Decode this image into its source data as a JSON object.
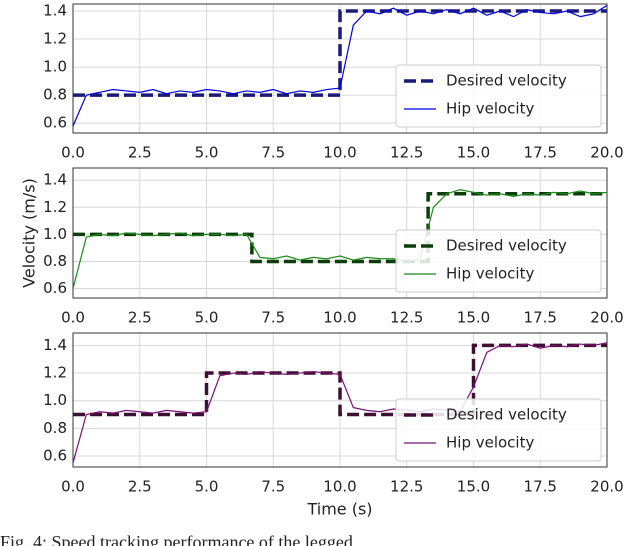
{
  "chart_data": [
    {
      "type": "line",
      "xlim": [
        0,
        20
      ],
      "ylim": [
        0.53,
        1.45
      ],
      "xticks": [
        {
          "value": 0,
          "label": "0.0"
        },
        2.5,
        {
          "value": 5,
          "label": "5.0"
        },
        7.5,
        {
          "value": 10,
          "label": "10.0"
        },
        12.5,
        {
          "value": 15,
          "label": "15.0"
        },
        17.5,
        {
          "value": 20,
          "label": "20.0"
        }
      ],
      "yticks": [
        0.6,
        0.8,
        {
          "value": 1,
          "label": "1.0"
        },
        1.2,
        1.4
      ],
      "grid": true,
      "legend": "lower right",
      "series": [
        {
          "name": "Desired velocity",
          "color": "#1a1a7a",
          "dashed": true,
          "x": [
            0,
            10,
            10,
            20
          ],
          "values": [
            0.8,
            0.8,
            1.4,
            1.4
          ]
        },
        {
          "name": "Hip velocity",
          "color": "#0000dd",
          "x": [
            0,
            0.5,
            1,
            1.5,
            2,
            2.5,
            3,
            3.5,
            4,
            4.5,
            5,
            5.5,
            6,
            6.5,
            7,
            7.5,
            8,
            8.5,
            9,
            9.5,
            10,
            10.5,
            11,
            11.5,
            12,
            12.5,
            13,
            13.5,
            14,
            14.5,
            15,
            15.5,
            16,
            16.5,
            17,
            17.5,
            18,
            18.5,
            19,
            19.5,
            20
          ],
          "values": [
            0.58,
            0.8,
            0.82,
            0.84,
            0.83,
            0.82,
            0.84,
            0.81,
            0.83,
            0.82,
            0.84,
            0.83,
            0.81,
            0.83,
            0.82,
            0.84,
            0.81,
            0.83,
            0.82,
            0.84,
            0.85,
            1.3,
            1.4,
            1.38,
            1.42,
            1.37,
            1.4,
            1.38,
            1.41,
            1.38,
            1.42,
            1.37,
            1.4,
            1.36,
            1.41,
            1.39,
            1.38,
            1.4,
            1.36,
            1.38,
            1.44
          ]
        }
      ]
    },
    {
      "type": "line",
      "xlim": [
        0,
        20
      ],
      "ylim": [
        0.53,
        1.49
      ],
      "ylabel": "Velocity (m/s)",
      "xticks": [
        {
          "value": 0,
          "label": "0.0"
        },
        2.5,
        {
          "value": 5,
          "label": "5.0"
        },
        7.5,
        {
          "value": 10,
          "label": "10.0"
        },
        12.5,
        {
          "value": 15,
          "label": "15.0"
        },
        17.5,
        {
          "value": 20,
          "label": "20.0"
        }
      ],
      "yticks": [
        0.6,
        0.8,
        {
          "value": 1,
          "label": "1.0"
        },
        1.2,
        1.4
      ],
      "grid": true,
      "legend": "lower right",
      "series": [
        {
          "name": "Desired velocity",
          "color": "#0b3d0b",
          "dashed": true,
          "x": [
            0,
            6.7,
            6.7,
            13.3,
            13.3,
            20
          ],
          "values": [
            1.0,
            1.0,
            0.8,
            0.8,
            1.3,
            1.3
          ]
        },
        {
          "name": "Hip velocity",
          "color": "#1a8a1a",
          "x": [
            0,
            0.5,
            1,
            1.5,
            2,
            2.5,
            3,
            3.5,
            4,
            4.5,
            5,
            5.5,
            6,
            6.5,
            7,
            7.5,
            8,
            8.5,
            9,
            9.5,
            10,
            10.5,
            11,
            11.5,
            12,
            12.5,
            13,
            13.5,
            14,
            14.5,
            15,
            15.5,
            16,
            16.5,
            17,
            17.5,
            18,
            18.5,
            19,
            19.5,
            20
          ],
          "values": [
            0.6,
            0.98,
            1.0,
            0.99,
            1.01,
            1.0,
            0.99,
            1.0,
            1.01,
            0.99,
            1.0,
            1.0,
            0.99,
            1.0,
            0.83,
            0.82,
            0.84,
            0.81,
            0.83,
            0.82,
            0.84,
            0.81,
            0.83,
            0.82,
            0.82,
            0.8,
            0.82,
            1.2,
            1.3,
            1.33,
            1.31,
            1.29,
            1.3,
            1.28,
            1.3,
            1.29,
            1.31,
            1.3,
            1.32,
            1.3,
            1.31
          ]
        }
      ]
    },
    {
      "type": "line",
      "xlim": [
        0,
        20
      ],
      "ylim": [
        0.52,
        1.49
      ],
      "xlabel": "Time (s)",
      "xticks": [
        {
          "value": 0,
          "label": "0.0"
        },
        2.5,
        {
          "value": 5,
          "label": "5.0"
        },
        7.5,
        {
          "value": 10,
          "label": "10.0"
        },
        12.5,
        {
          "value": 15,
          "label": "15.0"
        },
        17.5,
        {
          "value": 20,
          "label": "20.0"
        }
      ],
      "yticks": [
        0.6,
        0.8,
        {
          "value": 1,
          "label": "1.0"
        },
        1.2,
        1.4
      ],
      "grid": true,
      "legend": "lower right",
      "series": [
        {
          "name": "Desired velocity",
          "color": "#3d1033",
          "dashed": true,
          "x": [
            0,
            5,
            5,
            10,
            10,
            15,
            15,
            20
          ],
          "values": [
            0.9,
            0.9,
            1.2,
            1.2,
            0.9,
            0.9,
            1.4,
            1.4
          ]
        },
        {
          "name": "Hip velocity",
          "color": "#7a1070",
          "x": [
            0,
            0.5,
            1,
            1.5,
            2,
            2.5,
            3,
            3.5,
            4,
            4.5,
            5,
            5.5,
            6,
            6.5,
            7,
            7.5,
            8,
            8.5,
            9,
            9.5,
            10,
            10.5,
            11,
            11.5,
            12,
            12.5,
            13,
            13.5,
            14,
            14.5,
            15,
            15.5,
            16,
            16.5,
            17,
            17.5,
            18,
            18.5,
            19,
            19.5,
            20
          ],
          "values": [
            0.55,
            0.9,
            0.92,
            0.91,
            0.93,
            0.92,
            0.91,
            0.93,
            0.92,
            0.91,
            0.92,
            1.18,
            1.2,
            1.19,
            1.21,
            1.2,
            1.19,
            1.2,
            1.21,
            1.2,
            1.19,
            0.95,
            0.93,
            0.92,
            0.94,
            0.93,
            0.92,
            0.94,
            0.93,
            0.92,
            1.1,
            1.35,
            1.4,
            1.39,
            1.41,
            1.38,
            1.4,
            1.39,
            1.41,
            1.4,
            1.42
          ]
        }
      ]
    }
  ],
  "caption": "Fig. 4: Speed tracking performance of the legged"
}
